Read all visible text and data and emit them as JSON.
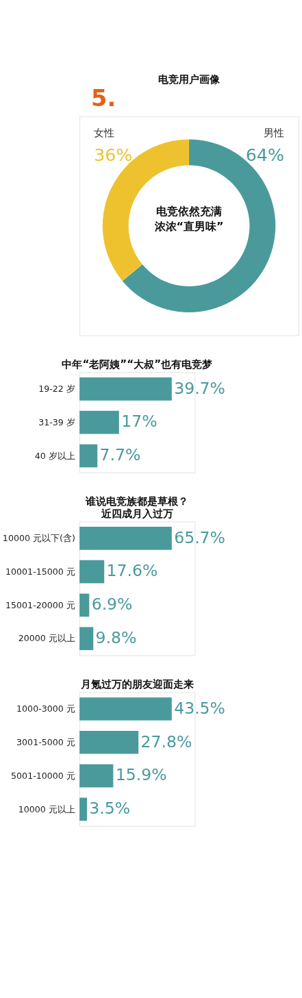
{
  "chart_data": [
    {
      "type": "donut",
      "title": "电竞用户画像",
      "annotations": [
        "5.",
        "电竞依然充满",
        "浓浓“直男味”"
      ],
      "categories": [
        "男性",
        "女性"
      ],
      "values": [
        64,
        36
      ],
      "colors": [
        "#4a9a9c",
        "#eec22f"
      ],
      "value_labels": [
        "64%",
        "36%"
      ]
    },
    {
      "type": "bar",
      "orientation": "horizontal",
      "title": "中年“老阿姨”“大叔”也有电竞梦",
      "categories": [
        "19-22 岁",
        "31-39 岁",
        "40 岁以上"
      ],
      "values": [
        39.7,
        17,
        7.7
      ],
      "color": "#4a9a9c",
      "value_labels": [
        "39.7%",
        "17%",
        "7.7%"
      ]
    },
    {
      "type": "bar",
      "orientation": "horizontal",
      "title": "谁说电竞族都是草根？",
      "subtitle": "近四成月入过万",
      "categories": [
        "10000 元以下(含)",
        "10001-15000 元",
        "15001-20000 元",
        "20000 元以上"
      ],
      "values": [
        65.7,
        17.6,
        6.9,
        9.8
      ],
      "color": "#4a9a9c",
      "value_labels": [
        "65.7%",
        "17.6%",
        "6.9%",
        "9.8%"
      ]
    },
    {
      "type": "bar",
      "orientation": "horizontal",
      "title": "月氪过万的朋友迎面走来",
      "categories": [
        "1000-3000 元",
        "3001-5000 元",
        "5001-10000 元",
        "10000 元以上"
      ],
      "values": [
        43.5,
        27.8,
        15.9,
        3.5
      ],
      "color": "#4a9a9c",
      "value_labels": [
        "43.5%",
        "27.8%",
        "15.9%",
        "3.5%"
      ]
    }
  ]
}
